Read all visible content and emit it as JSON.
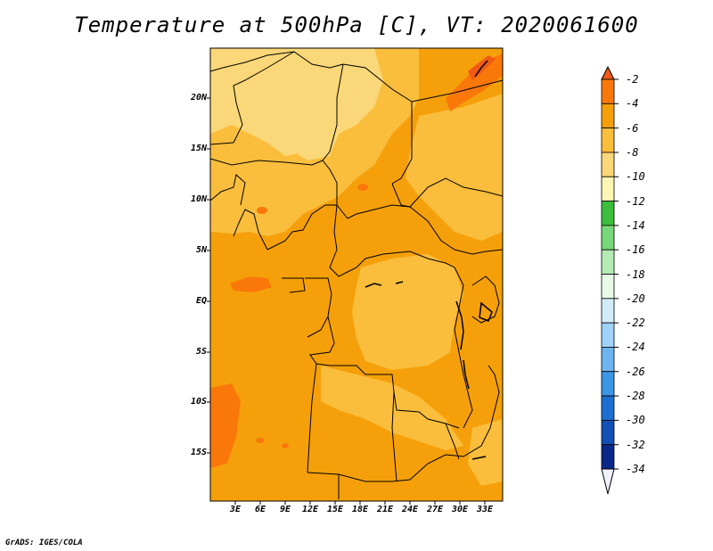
{
  "title": "Temperature at 500hPa [C], VT: 2020061600",
  "credit": "GrADS: IGES/COLA",
  "lat_labels": [
    "20N",
    "15N",
    "10N",
    "5N",
    "EQ",
    "5S",
    "10S",
    "15S"
  ],
  "lon_labels": [
    "3E",
    "6E",
    "9E",
    "12E",
    "15E",
    "18E",
    "21E",
    "24E",
    "27E",
    "30E",
    "33E"
  ],
  "colorbar": {
    "labels": [
      "-2",
      "-4",
      "-6",
      "-8",
      "-10",
      "-12",
      "-14",
      "-16",
      "-18",
      "-20",
      "-22",
      "-24",
      "-26",
      "-28",
      "-30",
      "-32",
      "-34"
    ],
    "colors": [
      "#f05a14",
      "#fa780a",
      "#f5a00a",
      "#fabe3c",
      "#fad778",
      "#fff5b4",
      "#3cbe3c",
      "#78d778",
      "#b4ebb4",
      "#e6fae6",
      "#d2ebfa",
      "#a0d2fa",
      "#6eb4f0",
      "#3c96e6",
      "#1e6ed2",
      "#1450b4",
      "#0a2887",
      "#0a0a50"
    ]
  },
  "map_colors": {
    "temp_m2_to_m4": "#f5a00a",
    "temp_m4_to_m6": "#f5ad2d",
    "temp_m6_to_m8": "#fabe3c",
    "temp_m8_to_m10": "#fad778",
    "temp_above_m4": "#fa780a",
    "temp_above_m2": "#f05a14"
  }
}
